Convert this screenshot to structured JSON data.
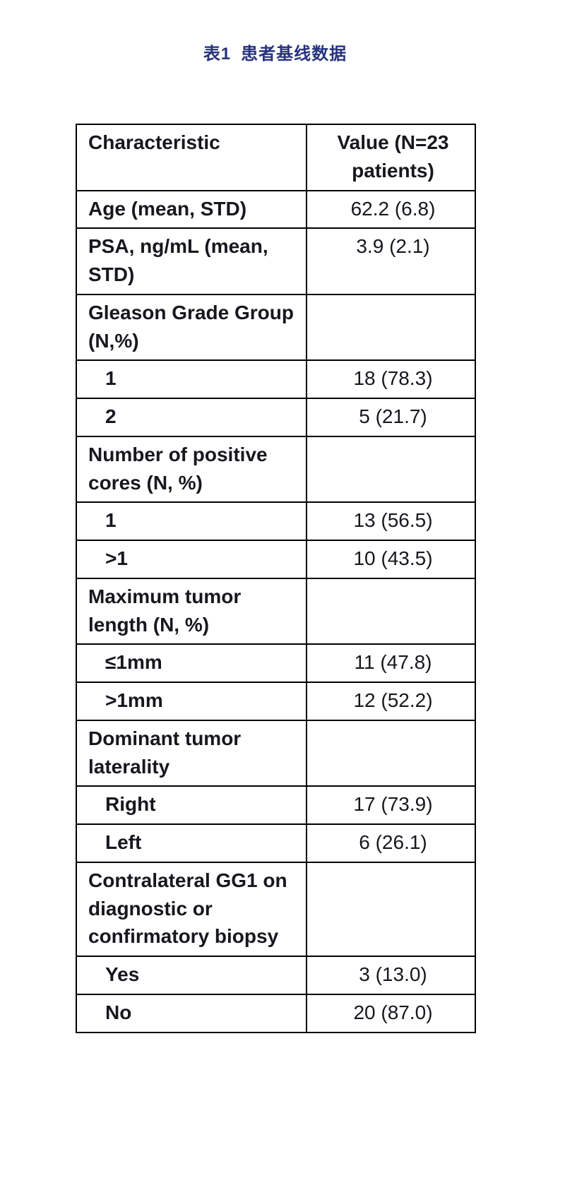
{
  "page": {
    "title": {
      "prefix": "表1",
      "text": "患者基线数据"
    },
    "title_color": "#27337d"
  },
  "table": {
    "header": {
      "characteristic": "Characteristic",
      "value": "Value (N=23 patients)"
    },
    "rows": [
      {
        "label": "Age (mean, STD)",
        "value": "62.2 (6.8)",
        "indent": false
      },
      {
        "label": "PSA, ng/mL (mean, STD)",
        "value": "3.9 (2.1)",
        "indent": false
      },
      {
        "label": "Gleason Grade Group (N,%)",
        "value": "",
        "indent": false
      },
      {
        "label": "1",
        "value": "18 (78.3)",
        "indent": true
      },
      {
        "label": "2",
        "value": "5 (21.7)",
        "indent": true
      },
      {
        "label": "Number of positive cores (N, %)",
        "value": "",
        "indent": false
      },
      {
        "label": "1",
        "value": "13 (56.5)",
        "indent": true
      },
      {
        "label": ">1",
        "value": "10 (43.5)",
        "indent": true
      },
      {
        "label": "Maximum tumor length (N, %)",
        "value": "",
        "indent": false
      },
      {
        "label": "≤1mm",
        "value": "11 (47.8)",
        "indent": true
      },
      {
        "label": ">1mm",
        "value": "12 (52.2)",
        "indent": true
      },
      {
        "label": "Dominant tumor laterality",
        "value": "",
        "indent": false
      },
      {
        "label": "Right",
        "value": "17 (73.9)",
        "indent": true
      },
      {
        "label": "Left",
        "value": "6 (26.1)",
        "indent": true
      },
      {
        "label": "Contralateral GG1 on diagnostic or confirmatory biopsy",
        "value": "",
        "indent": false
      },
      {
        "label": "Yes",
        "value": "3 (13.0)",
        "indent": true
      },
      {
        "label": "No",
        "value": "20 (87.0)",
        "indent": true
      }
    ]
  }
}
